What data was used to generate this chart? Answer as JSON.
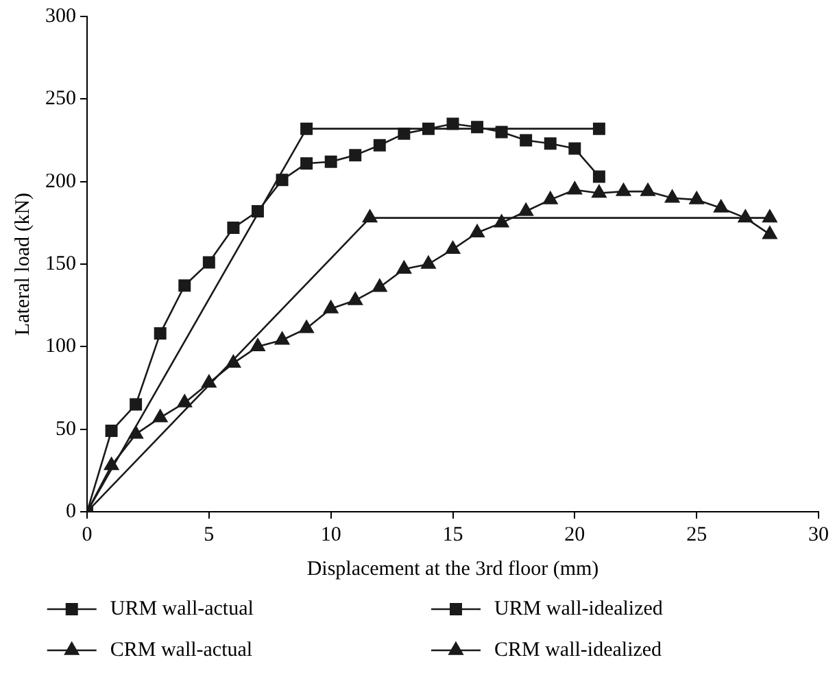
{
  "chart_data": {
    "type": "line",
    "xlabel": "Displacement at the 3rd floor (mm)",
    "ylabel": "Lateral load (kN)",
    "xlim": [
      0,
      30
    ],
    "xticks": [
      0,
      5,
      10,
      15,
      20,
      25,
      30
    ],
    "ylim": [
      0,
      300
    ],
    "yticks": [
      0,
      50,
      100,
      150,
      200,
      250,
      300
    ],
    "grid": false,
    "legend": "bottom",
    "line_style": "solid",
    "series": [
      {
        "name": "URM wall-actual",
        "color": "#1a1a1a",
        "marker": "square",
        "x": [
          0,
          1,
          2,
          3,
          4,
          5,
          6,
          7,
          8,
          9,
          10,
          11,
          12,
          13,
          14,
          15,
          16,
          17,
          18,
          19,
          20,
          21
        ],
        "values": [
          0,
          49,
          65,
          108,
          137,
          151,
          172,
          182,
          201,
          211,
          212,
          216,
          222,
          229,
          232,
          235,
          233,
          230,
          225,
          223,
          220,
          203
        ]
      },
      {
        "name": "URM wall-idealized",
        "color": "#1a1a1a",
        "marker": "square",
        "x": [
          0,
          9,
          21
        ],
        "values": [
          0,
          232,
          232
        ]
      },
      {
        "name": "CRM wall-actual",
        "color": "#1a1a1a",
        "marker": "triangle",
        "x": [
          0,
          1,
          2,
          3,
          4,
          5,
          6,
          7,
          8,
          9,
          10,
          11,
          12,
          13,
          14,
          15,
          16,
          17,
          18,
          19,
          20,
          21,
          22,
          23,
          24,
          25,
          26,
          27,
          28
        ],
        "values": [
          0,
          28,
          47,
          57,
          66,
          78,
          90,
          100,
          104,
          111,
          123,
          128,
          136,
          147,
          150,
          159,
          169,
          175,
          182,
          189,
          195,
          193,
          194,
          194,
          190,
          189,
          184,
          178,
          168
        ]
      },
      {
        "name": "CRM wall-idealized",
        "color": "#1a1a1a",
        "marker": "triangle",
        "x": [
          0,
          11.6,
          28
        ],
        "values": [
          0,
          178,
          178
        ]
      }
    ]
  }
}
